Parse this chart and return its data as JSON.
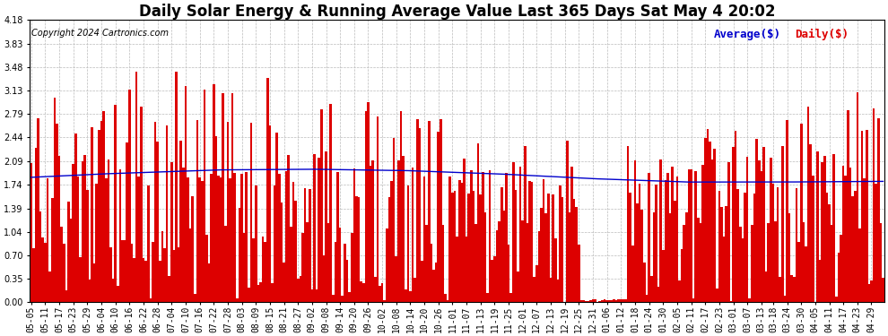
{
  "title": "Daily Solar Energy & Running Average Value Last 365 Days Sat May 4 20:02",
  "copyright": "Copyright 2024 Cartronics.com",
  "legend_average": "Average($)",
  "legend_daily": "Daily($)",
  "bar_color": "#dd0000",
  "avg_line_color": "#0000cc",
  "background_color": "#ffffff",
  "plot_bg_color": "#ffffff",
  "grid_color": "#bbbbbb",
  "ylim": [
    0.0,
    4.18
  ],
  "yticks": [
    0.0,
    0.35,
    0.7,
    1.04,
    1.39,
    1.74,
    2.09,
    2.44,
    2.79,
    3.13,
    3.48,
    3.83,
    4.18
  ],
  "title_fontsize": 12,
  "copyright_fontsize": 7,
  "legend_fontsize": 9,
  "tick_fontsize": 7,
  "x_tick_labels": [
    "05-05",
    "05-11",
    "05-17",
    "05-23",
    "05-29",
    "06-04",
    "06-10",
    "06-16",
    "06-22",
    "06-28",
    "07-04",
    "07-10",
    "07-16",
    "07-22",
    "07-28",
    "08-03",
    "08-09",
    "08-15",
    "08-21",
    "08-27",
    "09-02",
    "09-08",
    "09-14",
    "09-20",
    "09-26",
    "10-02",
    "10-08",
    "10-14",
    "10-20",
    "10-26",
    "11-01",
    "11-07",
    "11-13",
    "11-19",
    "11-25",
    "12-01",
    "12-07",
    "12-13",
    "12-19",
    "12-25",
    "12-31",
    "01-06",
    "01-12",
    "01-18",
    "01-24",
    "01-30",
    "02-05",
    "02-11",
    "02-17",
    "02-23",
    "03-01",
    "03-07",
    "03-13",
    "03-18",
    "03-24",
    "03-30",
    "04-05",
    "04-11",
    "04-17",
    "04-23",
    "04-29"
  ],
  "x_tick_positions": [
    0,
    6,
    12,
    18,
    24,
    30,
    36,
    42,
    48,
    54,
    60,
    66,
    72,
    78,
    84,
    90,
    96,
    102,
    108,
    114,
    120,
    126,
    132,
    138,
    144,
    150,
    156,
    162,
    168,
    174,
    180,
    186,
    192,
    198,
    204,
    210,
    216,
    222,
    228,
    234,
    240,
    246,
    252,
    258,
    264,
    270,
    276,
    282,
    288,
    294,
    300,
    306,
    312,
    317,
    323,
    329,
    335,
    341,
    347,
    353,
    359
  ]
}
